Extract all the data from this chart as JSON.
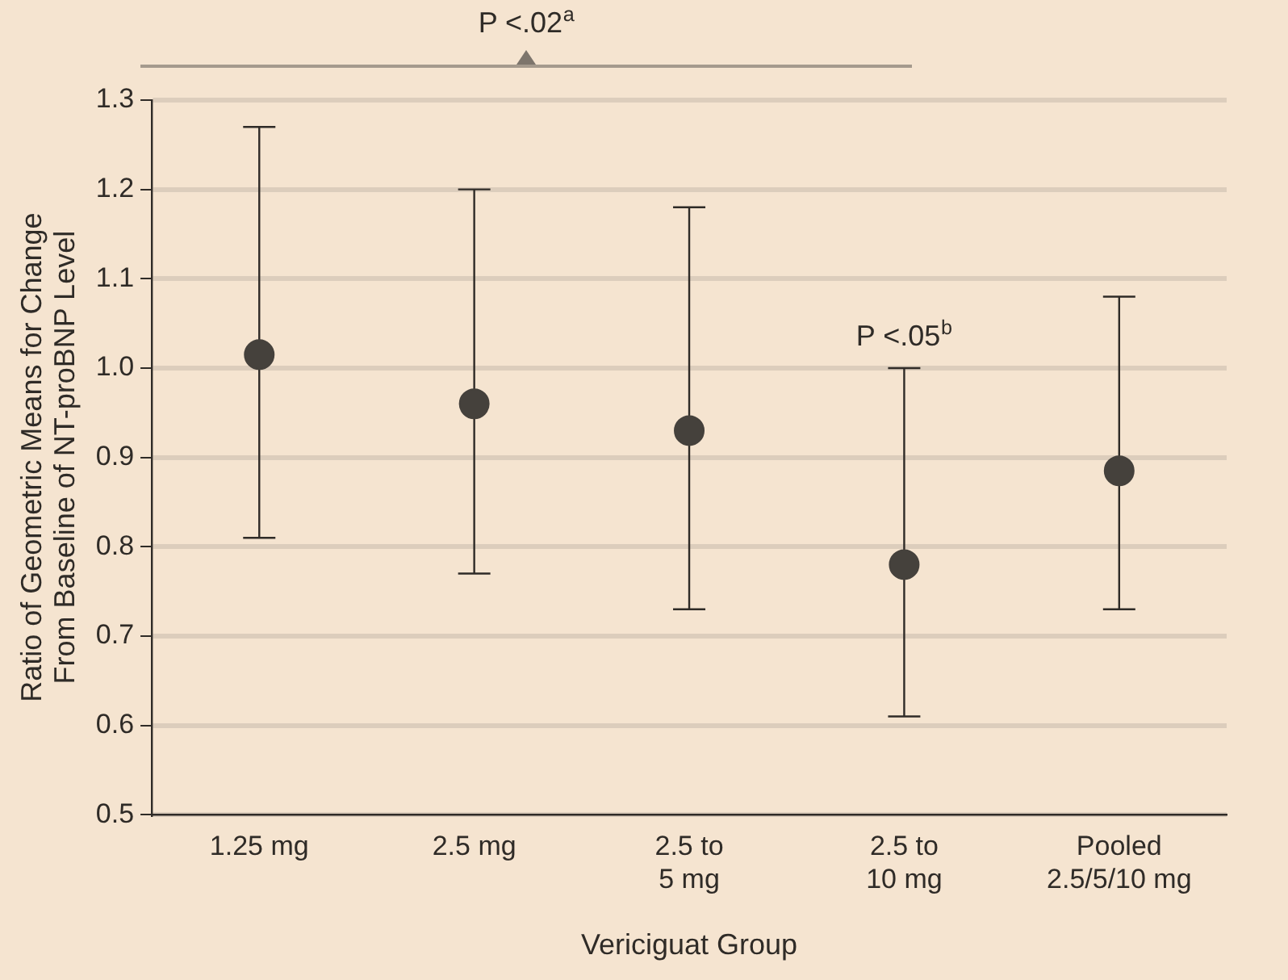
{
  "chart_data": {
    "type": "scatter",
    "xlabel": "Vericiguat Group",
    "ylabel": "Ratio of Geometric Means for Change\nFrom Baseline of NT-proBNP Level",
    "categories": [
      "1.25 mg",
      "2.5 mg",
      "2.5 to\n5 mg",
      "2.5 to\n10 mg",
      "Pooled\n2.5/5/10 mg"
    ],
    "values": [
      1.015,
      0.96,
      0.93,
      0.78,
      0.885
    ],
    "errors": [
      [
        0.81,
        1.27
      ],
      [
        0.77,
        1.2
      ],
      [
        0.73,
        1.18
      ],
      [
        0.61,
        1.0
      ],
      [
        0.73,
        1.08
      ]
    ],
    "color": "#45413c",
    "marker": "circle",
    "ylim": [
      0.5,
      1.3
    ],
    "yticks": [
      {
        "value": 0.5,
        "label": "0.5"
      },
      {
        "value": 0.6,
        "label": "0.6"
      },
      {
        "value": 0.7,
        "label": "0.7"
      },
      {
        "value": 0.8,
        "label": "0.8"
      },
      {
        "value": 0.9,
        "label": "0.9"
      },
      {
        "value": 1.0,
        "label": "1.0"
      },
      {
        "value": 1.1,
        "label": "1.1"
      },
      {
        "value": 1.2,
        "label": "1.2"
      },
      {
        "value": 1.3,
        "label": "1.3"
      }
    ],
    "grid": "y",
    "annotations": [
      "P <.02$^{a}$",
      {
        "text": "P <.05$^{b}$",
        "x": "2.5 to\n10 mg",
        "y": 1.0
      }
    ]
  }
}
